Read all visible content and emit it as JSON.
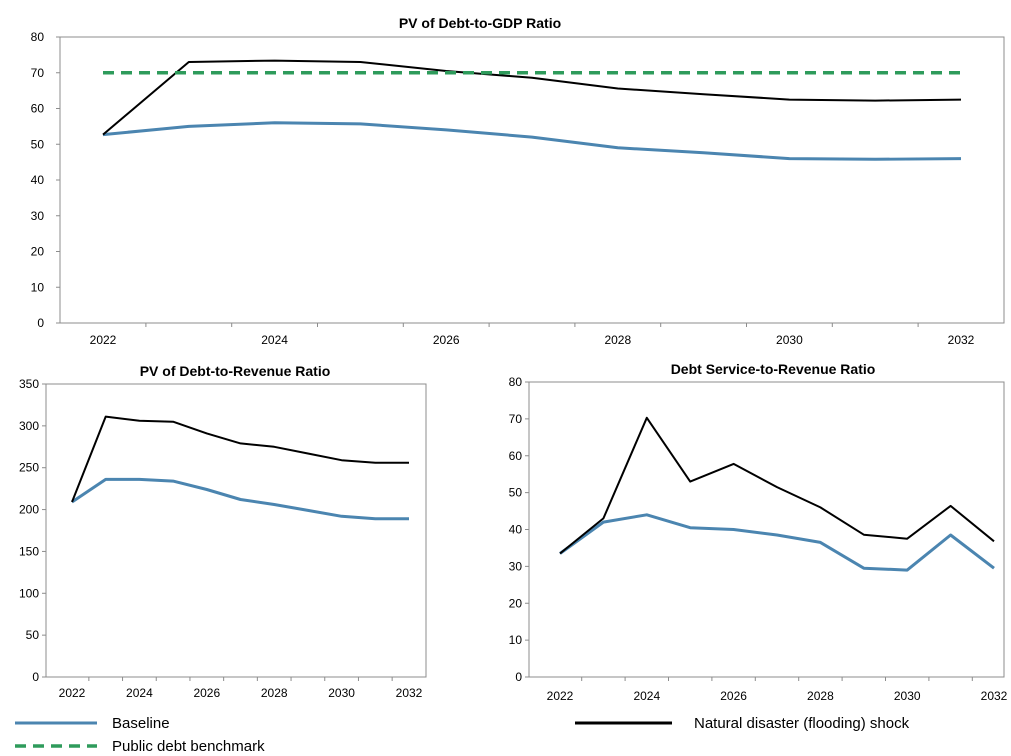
{
  "colors": {
    "baseline": "#4b85b0",
    "shock": "#000000",
    "benchmark": "#2e9b5b",
    "axis": "#8c8c8c",
    "frame": "#8c8c8c"
  },
  "legend": {
    "baseline": "Baseline",
    "shock": "Natural disaster (flooding) shock",
    "benchmark": "Public debt benchmark"
  },
  "chart_data": [
    {
      "id": "top",
      "type": "line",
      "title": "PV of Debt-to-GDP Ratio",
      "x": [
        2022,
        2023,
        2024,
        2025,
        2026,
        2027,
        2028,
        2029,
        2030,
        2031,
        2032
      ],
      "x_tick_labels": [
        "2022",
        "2024",
        "2026",
        "2028",
        "2030",
        "2032"
      ],
      "ylim": [
        0,
        80
      ],
      "y_ticks": [
        0,
        10,
        20,
        30,
        40,
        50,
        60,
        70,
        80
      ],
      "series": [
        {
          "key": "baseline",
          "values": [
            52.7,
            55.0,
            56.0,
            55.7,
            54.0,
            52.0,
            49.0,
            47.6,
            46.0,
            45.8,
            46.0
          ]
        },
        {
          "key": "shock",
          "values": [
            52.7,
            73.0,
            73.4,
            73.0,
            70.5,
            68.6,
            65.6,
            64.0,
            62.5,
            62.2,
            62.5
          ]
        },
        {
          "key": "benchmark",
          "values": [
            70,
            70,
            70,
            70,
            70,
            70,
            70,
            70,
            70,
            70,
            70
          ]
        }
      ]
    },
    {
      "id": "bl",
      "type": "line",
      "title": "PV of Debt-to-Revenue Ratio",
      "x": [
        2022,
        2023,
        2024,
        2025,
        2026,
        2027,
        2028,
        2029,
        2030,
        2031,
        2032
      ],
      "x_tick_labels": [
        "2022",
        "2024",
        "2026",
        "2028",
        "2030",
        "2032"
      ],
      "ylim": [
        0,
        350
      ],
      "y_ticks": [
        0,
        50,
        100,
        150,
        200,
        250,
        300,
        350
      ],
      "series": [
        {
          "key": "baseline",
          "values": [
            209,
            236,
            236,
            234,
            224,
            212,
            206,
            199,
            192,
            189,
            189
          ]
        },
        {
          "key": "shock",
          "values": [
            209,
            311,
            306,
            305,
            291,
            279,
            275,
            267,
            259,
            256,
            256
          ]
        }
      ]
    },
    {
      "id": "br",
      "type": "line",
      "title": "Debt Service-to-Revenue Ratio",
      "x": [
        2022,
        2023,
        2024,
        2025,
        2026,
        2027,
        2028,
        2029,
        2030,
        2031,
        2032
      ],
      "x_tick_labels": [
        "2022",
        "2024",
        "2026",
        "2028",
        "2030",
        "2032"
      ],
      "ylim": [
        0,
        80
      ],
      "y_ticks": [
        0,
        10,
        20,
        30,
        40,
        50,
        60,
        70,
        80
      ],
      "series": [
        {
          "key": "baseline",
          "values": [
            33.5,
            42.0,
            44.0,
            40.5,
            40.0,
            38.5,
            36.5,
            29.5,
            29.0,
            38.5,
            29.5
          ]
        },
        {
          "key": "shock",
          "values": [
            33.5,
            43.0,
            70.3,
            53.0,
            57.8,
            51.5,
            46.0,
            38.6,
            37.5,
            46.4,
            36.8
          ]
        }
      ]
    }
  ]
}
